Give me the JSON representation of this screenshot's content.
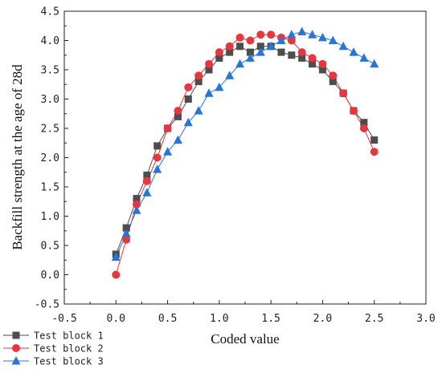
{
  "chart_data": {
    "type": "line",
    "title": "",
    "xlabel": "Coded value",
    "ylabel": "Backfill strength at the age of 28d",
    "xlim": [
      -0.5,
      3.0
    ],
    "ylim": [
      -0.5,
      4.5
    ],
    "xticks": [
      -0.5,
      0.0,
      0.5,
      1.0,
      1.5,
      2.0,
      2.5,
      3.0
    ],
    "yticks": [
      -0.5,
      0.0,
      0.5,
      1.0,
      1.5,
      2.0,
      2.5,
      3.0,
      3.5,
      4.0,
      4.5
    ],
    "xtick_labels": [
      "-0.5",
      "0.0",
      "0.5",
      "1.0",
      "1.5",
      "2.0",
      "2.5",
      "3.0"
    ],
    "ytick_labels": [
      "-0.5",
      "0.0",
      "0.5",
      "1.0",
      "1.5",
      "2.0",
      "2.5",
      "3.0",
      "3.5",
      "4.0",
      "4.5"
    ],
    "grid": false,
    "legend_position": "bottom-left",
    "series": [
      {
        "name": "Test block 1",
        "color": "#4d4d4d",
        "marker": "square",
        "x": [
          0.0,
          0.1,
          0.2,
          0.3,
          0.4,
          0.5,
          0.6,
          0.7,
          0.8,
          0.9,
          1.0,
          1.1,
          1.2,
          1.3,
          1.4,
          1.5,
          1.6,
          1.7,
          1.8,
          1.9,
          2.0,
          2.1,
          2.2,
          2.3,
          2.4,
          2.5
        ],
        "y": [
          0.35,
          0.8,
          1.3,
          1.7,
          2.2,
          2.5,
          2.7,
          3.0,
          3.3,
          3.5,
          3.7,
          3.8,
          3.9,
          3.8,
          3.9,
          3.9,
          3.8,
          3.75,
          3.7,
          3.6,
          3.5,
          3.3,
          3.1,
          2.8,
          2.6,
          2.3
        ]
      },
      {
        "name": "Test block 2",
        "color": "#e8363f",
        "marker": "circle",
        "x": [
          0.0,
          0.1,
          0.2,
          0.3,
          0.4,
          0.5,
          0.6,
          0.7,
          0.8,
          0.9,
          1.0,
          1.1,
          1.2,
          1.3,
          1.4,
          1.5,
          1.6,
          1.7,
          1.8,
          1.9,
          2.0,
          2.1,
          2.2,
          2.3,
          2.4,
          2.5
        ],
        "y": [
          0.0,
          0.6,
          1.2,
          1.6,
          2.0,
          2.5,
          2.8,
          3.2,
          3.4,
          3.6,
          3.8,
          3.9,
          4.05,
          4.0,
          4.1,
          4.1,
          4.05,
          4.0,
          3.8,
          3.7,
          3.6,
          3.4,
          3.1,
          2.8,
          2.5,
          2.1
        ]
      },
      {
        "name": "Test block 3",
        "color": "#2a74d6",
        "marker": "triangle",
        "x": [
          0.0,
          0.1,
          0.2,
          0.3,
          0.4,
          0.5,
          0.6,
          0.7,
          0.8,
          0.9,
          1.0,
          1.1,
          1.2,
          1.3,
          1.4,
          1.5,
          1.6,
          1.7,
          1.8,
          1.9,
          2.0,
          2.1,
          2.2,
          2.3,
          2.4,
          2.5
        ],
        "y": [
          0.3,
          0.7,
          1.1,
          1.4,
          1.8,
          2.1,
          2.3,
          2.6,
          2.8,
          3.1,
          3.2,
          3.4,
          3.6,
          3.7,
          3.8,
          3.9,
          4.0,
          4.1,
          4.15,
          4.1,
          4.05,
          4.0,
          3.9,
          3.8,
          3.7,
          3.6
        ]
      }
    ]
  }
}
